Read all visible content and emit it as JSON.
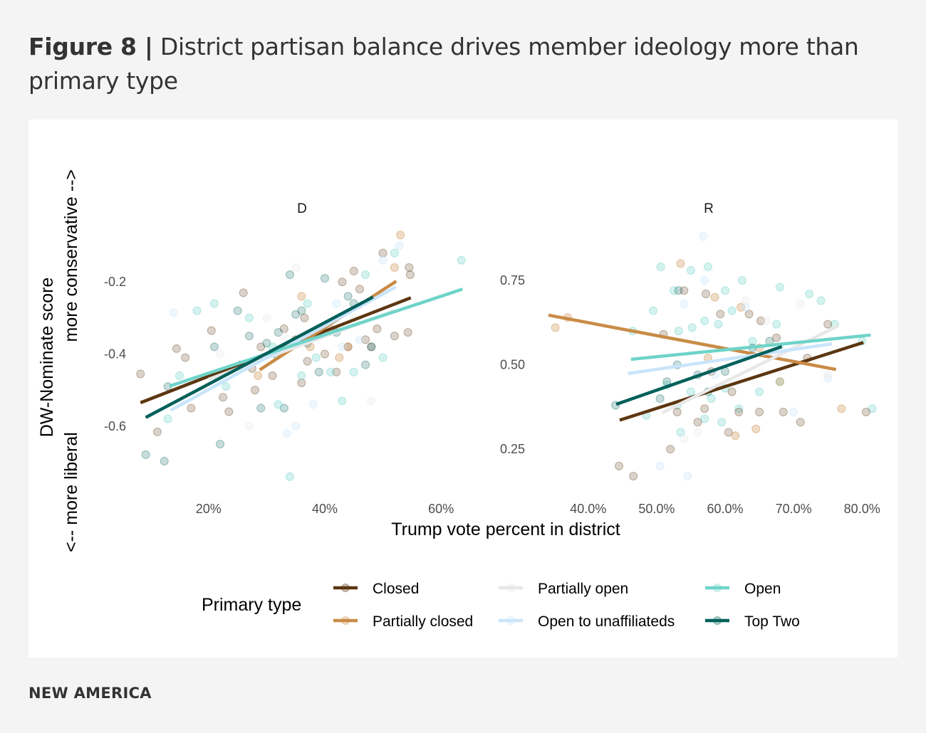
{
  "title": {
    "figure": "Figure 8 |",
    "text": "District partisan balance drives member ideology more than primary type"
  },
  "footer": "NEW AMERICA",
  "chart_data": [
    {
      "type": "scatter",
      "panel": "D",
      "xlabel": "Trump vote percent in district",
      "ylabel": "DW-Nominate score",
      "ylabel_sub": [
        "<-- more liberal",
        "more conservative -->"
      ],
      "xticks": [
        {
          "v": 20,
          "label": "20%"
        },
        {
          "v": 40,
          "label": "40%"
        },
        {
          "v": 60,
          "label": "60%"
        }
      ],
      "yticks": [
        {
          "v": -0.2,
          "label": "-0.2"
        },
        {
          "v": -0.4,
          "label": "-0.4"
        },
        {
          "v": -0.6,
          "label": "-0.6"
        }
      ],
      "xlim": [
        6.8,
        65
      ],
      "ylim": [
        -0.78,
        -0.03
      ],
      "grid": false,
      "points_format": "[trump_vote_pct, dw_nominate, primary_type_index]",
      "points": [
        [
          8.3,
          -0.455,
          0
        ],
        [
          11.2,
          -0.616,
          0
        ],
        [
          14.5,
          -0.385,
          0
        ],
        [
          16,
          -0.41,
          0
        ],
        [
          17,
          -0.55,
          0
        ],
        [
          20.5,
          -0.335,
          0
        ],
        [
          22.5,
          -0.52,
          0
        ],
        [
          23.5,
          -0.56,
          0
        ],
        [
          26,
          -0.23,
          0
        ],
        [
          27.5,
          -0.44,
          0
        ],
        [
          29,
          -0.38,
          0
        ],
        [
          33,
          -0.33,
          0
        ],
        [
          35,
          -0.36,
          0
        ],
        [
          36.5,
          -0.3,
          0
        ],
        [
          37,
          -0.42,
          0
        ],
        [
          39,
          -0.34,
          0
        ],
        [
          40,
          -0.4,
          0
        ],
        [
          42,
          -0.45,
          0
        ],
        [
          43,
          -0.2,
          0
        ],
        [
          44,
          -0.38,
          0
        ],
        [
          45,
          -0.17,
          0
        ],
        [
          46,
          -0.22,
          0
        ],
        [
          47,
          -0.36,
          0
        ],
        [
          48,
          -0.38,
          0
        ],
        [
          49,
          -0.33,
          0
        ],
        [
          50,
          -0.12,
          0
        ],
        [
          52,
          -0.35,
          0
        ],
        [
          54.5,
          -0.16,
          0
        ],
        [
          54.7,
          -0.18,
          0
        ],
        [
          54.3,
          -0.34,
          0
        ],
        [
          31,
          -0.46,
          0
        ],
        [
          36,
          -0.48,
          0
        ],
        [
          28,
          -0.5,
          0
        ],
        [
          9.2,
          -0.679,
          5
        ],
        [
          12.4,
          -0.697,
          5
        ],
        [
          13,
          -0.49,
          5
        ],
        [
          21,
          -0.38,
          5
        ],
        [
          22,
          -0.65,
          5
        ],
        [
          25,
          -0.28,
          5
        ],
        [
          25.5,
          -0.43,
          5
        ],
        [
          27,
          -0.35,
          5
        ],
        [
          29,
          -0.55,
          5
        ],
        [
          30,
          -0.37,
          5
        ],
        [
          32,
          -0.34,
          5
        ],
        [
          33,
          -0.55,
          5
        ],
        [
          34,
          -0.18,
          5
        ],
        [
          35,
          -0.29,
          5
        ],
        [
          36,
          -0.28,
          5
        ],
        [
          37,
          -0.37,
          5
        ],
        [
          39,
          -0.45,
          5
        ],
        [
          40,
          -0.19,
          5
        ],
        [
          42,
          -0.34,
          5
        ],
        [
          44,
          -0.24,
          5
        ],
        [
          45,
          -0.26,
          5
        ],
        [
          47,
          -0.43,
          5
        ],
        [
          48,
          -0.38,
          5
        ],
        [
          31.5,
          -0.4,
          5
        ],
        [
          13,
          -0.58,
          4
        ],
        [
          15,
          -0.46,
          4
        ],
        [
          18,
          -0.28,
          4
        ],
        [
          21,
          -0.26,
          4
        ],
        [
          23,
          -0.49,
          4
        ],
        [
          27,
          -0.3,
          4
        ],
        [
          31,
          -0.38,
          4
        ],
        [
          32,
          -0.54,
          4
        ],
        [
          36,
          -0.46,
          4
        ],
        [
          38.5,
          -0.41,
          4
        ],
        [
          41,
          -0.45,
          4
        ],
        [
          43,
          -0.53,
          4
        ],
        [
          45,
          -0.45,
          4
        ],
        [
          47,
          -0.18,
          4
        ],
        [
          50,
          -0.41,
          4
        ],
        [
          52,
          -0.12,
          4
        ],
        [
          63.5,
          -0.14,
          4
        ],
        [
          34,
          -0.74,
          4
        ],
        [
          37,
          -0.26,
          4
        ],
        [
          28.5,
          -0.46,
          1
        ],
        [
          36,
          -0.24,
          1
        ],
        [
          41,
          -0.33,
          1
        ],
        [
          42.5,
          -0.41,
          1
        ],
        [
          44,
          -0.38,
          1
        ],
        [
          52,
          -0.16,
          1
        ],
        [
          53,
          -0.07,
          1
        ],
        [
          37.5,
          -0.38,
          1
        ],
        [
          14,
          -0.285,
          3
        ],
        [
          26,
          -0.43,
          3
        ],
        [
          35,
          -0.6,
          3
        ],
        [
          38,
          -0.54,
          3
        ],
        [
          42,
          -0.26,
          3
        ],
        [
          43,
          -0.38,
          3
        ],
        [
          46,
          -0.36,
          3
        ],
        [
          50,
          -0.14,
          3
        ],
        [
          52.8,
          -0.1,
          3
        ],
        [
          33.5,
          -0.62,
          3
        ],
        [
          22,
          -0.4,
          2
        ],
        [
          27,
          -0.6,
          2
        ],
        [
          33,
          -0.35,
          2
        ],
        [
          35,
          -0.16,
          2
        ],
        [
          45,
          -0.3,
          2
        ],
        [
          48,
          -0.53,
          2
        ],
        [
          30,
          -0.3,
          2
        ]
      ],
      "trend_lines": [
        {
          "type": 0,
          "from": [
            8.3,
            -0.535
          ],
          "to": [
            54.8,
            -0.244
          ]
        },
        {
          "type": 1,
          "from": [
            28.8,
            -0.444
          ],
          "to": [
            52.3,
            -0.198
          ]
        },
        {
          "type": 2,
          "from": [
            20,
            -0.47
          ],
          "to": [
            52,
            -0.28
          ]
        },
        {
          "type": 3,
          "from": [
            13.5,
            -0.556
          ],
          "to": [
            52.2,
            -0.214
          ]
        },
        {
          "type": 4,
          "from": [
            13.3,
            -0.489
          ],
          "to": [
            63.7,
            -0.22
          ]
        },
        {
          "type": 5,
          "from": [
            9.2,
            -0.576
          ],
          "to": [
            48.3,
            -0.242
          ]
        }
      ]
    },
    {
      "type": "scatter",
      "panel": "R",
      "xticks": [
        {
          "v": 40,
          "label": "40.0%"
        },
        {
          "v": 50,
          "label": "50.0%"
        },
        {
          "v": 60,
          "label": "60.0%"
        },
        {
          "v": 70,
          "label": "70.0%"
        },
        {
          "v": 80,
          "label": "80.0%"
        }
      ],
      "yticks": [
        {
          "v": 0.75,
          "label": "0.75"
        },
        {
          "v": 0.5,
          "label": "0.50"
        },
        {
          "v": 0.25,
          "label": "0.25"
        }
      ],
      "xlim": [
        31.6,
        83.1
      ],
      "ylim": [
        0.126,
        0.927
      ],
      "grid": false,
      "points_format": "[trump_vote_pct, dw_nominate, primary_type_index]",
      "points": [
        [
          50.6,
          0.79,
          4
        ],
        [
          52.5,
          0.72,
          4
        ],
        [
          55,
          0.78,
          4
        ],
        [
          57.5,
          0.79,
          4
        ],
        [
          60,
          0.72,
          4
        ],
        [
          62.5,
          0.75,
          4
        ],
        [
          49.5,
          0.66,
          4
        ],
        [
          53.2,
          0.6,
          4
        ],
        [
          55.2,
          0.61,
          4
        ],
        [
          57,
          0.63,
          4
        ],
        [
          59,
          0.62,
          4
        ],
        [
          61,
          0.66,
          4
        ],
        [
          64,
          0.57,
          4
        ],
        [
          67.5,
          0.62,
          4
        ],
        [
          68,
          0.73,
          4
        ],
        [
          72.3,
          0.71,
          4
        ],
        [
          74,
          0.69,
          4
        ],
        [
          76,
          0.62,
          4
        ],
        [
          80,
          0.57,
          4
        ],
        [
          81.5,
          0.37,
          4
        ],
        [
          46.5,
          0.6,
          4
        ],
        [
          51.5,
          0.44,
          4
        ],
        [
          53,
          0.38,
          4
        ],
        [
          55,
          0.42,
          4
        ],
        [
          58,
          0.4,
          4
        ],
        [
          60,
          0.43,
          4
        ],
        [
          62,
          0.37,
          4
        ],
        [
          65,
          0.42,
          4
        ],
        [
          68,
          0.45,
          4
        ],
        [
          48.5,
          0.35,
          4
        ],
        [
          53.5,
          0.3,
          4
        ],
        [
          57,
          0.34,
          4
        ],
        [
          59.5,
          0.33,
          4
        ],
        [
          44.5,
          0.2,
          0
        ],
        [
          46.6,
          0.17,
          0
        ],
        [
          51,
          0.59,
          0
        ],
        [
          54,
          0.72,
          0
        ],
        [
          57.2,
          0.71,
          0
        ],
        [
          59.3,
          0.65,
          0
        ],
        [
          63.5,
          0.65,
          0
        ],
        [
          65.2,
          0.63,
          0
        ],
        [
          67.5,
          0.58,
          0
        ],
        [
          72,
          0.52,
          0
        ],
        [
          75,
          0.62,
          0
        ],
        [
          80.6,
          0.36,
          0
        ],
        [
          52,
          0.25,
          0
        ],
        [
          53,
          0.36,
          0
        ],
        [
          56,
          0.33,
          0
        ],
        [
          57,
          0.37,
          0
        ],
        [
          60.5,
          0.3,
          0
        ],
        [
          62,
          0.36,
          0
        ],
        [
          65,
          0.36,
          0
        ],
        [
          68.5,
          0.36,
          0
        ],
        [
          71,
          0.33,
          0
        ],
        [
          58,
          0.48,
          0
        ],
        [
          61,
          0.42,
          0
        ],
        [
          44,
          0.38,
          5
        ],
        [
          53.2,
          0.72,
          5
        ],
        [
          51.5,
          0.45,
          5
        ],
        [
          53,
          0.5,
          5
        ],
        [
          56,
          0.47,
          5
        ],
        [
          57.5,
          0.42,
          5
        ],
        [
          60,
          0.48,
          5
        ],
        [
          64,
          0.55,
          5
        ],
        [
          66.5,
          0.57,
          5
        ],
        [
          50.5,
          0.4,
          5
        ],
        [
          35.2,
          0.61,
          1
        ],
        [
          37,
          0.64,
          1
        ],
        [
          53.5,
          0.8,
          1
        ],
        [
          58.5,
          0.7,
          1
        ],
        [
          62.3,
          0.67,
          1
        ],
        [
          65,
          0.55,
          1
        ],
        [
          68,
          0.45,
          1
        ],
        [
          77,
          0.37,
          1
        ],
        [
          64.5,
          0.31,
          1
        ],
        [
          61.5,
          0.29,
          1
        ],
        [
          57.5,
          0.52,
          1
        ],
        [
          56.8,
          0.88,
          3
        ],
        [
          57,
          0.75,
          3
        ],
        [
          54,
          0.68,
          3
        ],
        [
          63,
          0.67,
          3
        ],
        [
          58.5,
          0.47,
          3
        ],
        [
          70,
          0.36,
          3
        ],
        [
          50.5,
          0.2,
          3
        ],
        [
          54.5,
          0.17,
          3
        ],
        [
          75,
          0.46,
          3
        ],
        [
          63,
          0.69,
          2
        ],
        [
          66,
          0.63,
          2
        ],
        [
          71,
          0.68,
          2
        ],
        [
          75,
          0.47,
          2
        ],
        [
          54,
          0.28,
          2
        ],
        [
          56,
          0.3,
          2
        ]
      ],
      "trend_lines": [
        {
          "type": 0,
          "from": [
            44.6,
            0.336
          ],
          "to": [
            80.2,
            0.566
          ]
        },
        {
          "type": 1,
          "from": [
            34.2,
            0.647
          ],
          "to": [
            76.2,
            0.486
          ]
        },
        {
          "type": 2,
          "from": [
            50.8,
            0.358
          ],
          "to": [
            76.5,
            0.615
          ]
        },
        {
          "type": 3,
          "from": [
            45.8,
            0.474
          ],
          "to": [
            75.6,
            0.562
          ]
        },
        {
          "type": 4,
          "from": [
            46.25,
            0.516
          ],
          "to": [
            81.25,
            0.588
          ]
        },
        {
          "type": 5,
          "from": [
            44.1,
            0.383
          ],
          "to": [
            68.3,
            0.554
          ]
        }
      ]
    }
  ],
  "legend": {
    "title": "Primary type",
    "placement": "bottom",
    "items": [
      {
        "label": "Closed",
        "color": "#5c3610"
      },
      {
        "label": "Partially closed",
        "color": "#c98b46"
      },
      {
        "label": "Partially open",
        "color": "#e8e8e8"
      },
      {
        "label": "Open to unaffiliateds",
        "color": "#c9e5fb"
      },
      {
        "label": "Open",
        "color": "#6fd4c9"
      },
      {
        "label": "Top Two",
        "color": "#02605a"
      }
    ]
  }
}
